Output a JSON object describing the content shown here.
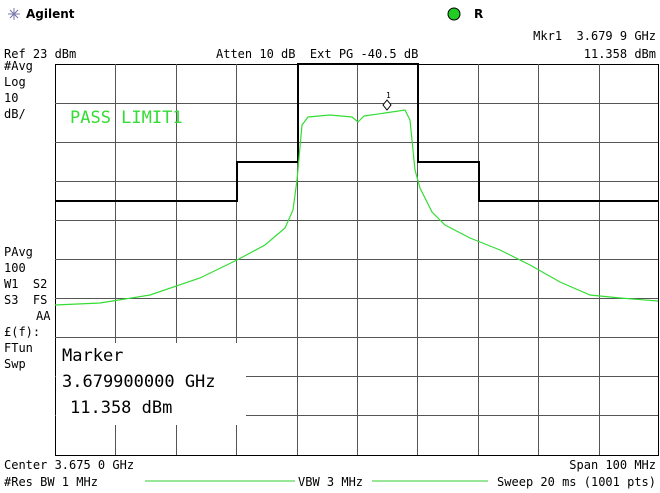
{
  "header": {
    "brand": "Agilent",
    "status": "R",
    "marker_readout": "Mkr1  3.679 9 GHz",
    "marker_level": "11.358 dBm",
    "ref": "Ref 23 dBm",
    "atten": "Atten 10 dB  Ext PG -40.5 dB"
  },
  "left_labels": [
    "#Avg",
    "Log",
    "10",
    "dB/",
    "PAvg",
    "100",
    "W1  S2",
    "S3  FS",
    "AA",
    "£(f):",
    "FTun",
    "Swp"
  ],
  "limit_message": "PASS LIMIT1",
  "marker_box": {
    "title": "Marker",
    "frequency": "3.679900000 GHz",
    "level": "11.358 dBm"
  },
  "marker_id": "1",
  "footer": {
    "center": "Center 3.675 0 GHz",
    "span": "Span 100 MHz",
    "res_bw": "#Res BW 1 MHz",
    "vbw": "VBW 3 MHz",
    "sweep": "Sweep 20 ms (1001 pts)"
  }
}
